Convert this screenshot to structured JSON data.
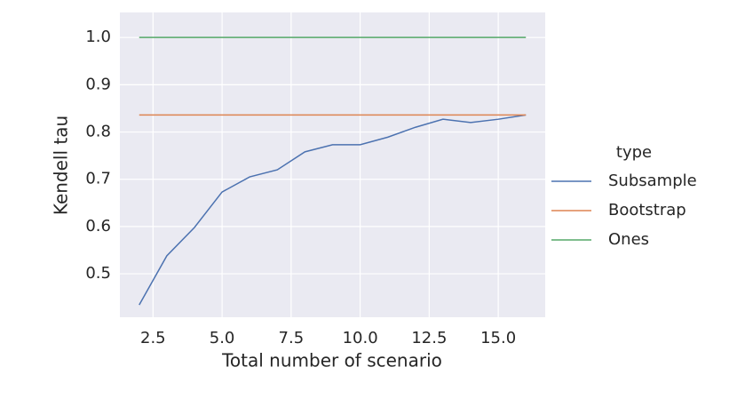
{
  "chart_data": {
    "type": "line",
    "x_label": "Total number of scenario",
    "y_label": "Kendell tau",
    "legend_title": "type",
    "x": [
      2,
      3,
      4,
      5,
      6,
      7,
      8,
      9,
      10,
      11,
      12,
      13,
      14,
      15,
      16
    ],
    "series": [
      {
        "name": "Subsample",
        "color": "#4c72b0",
        "values": [
          0.434,
          0.538,
          0.598,
          0.673,
          0.705,
          0.72,
          0.758,
          0.773,
          0.773,
          0.789,
          0.81,
          0.827,
          0.82,
          0.827,
          0.836
        ]
      },
      {
        "name": "Bootstrap",
        "color": "#dd8452",
        "values": [
          0.836,
          0.836,
          0.836,
          0.836,
          0.836,
          0.836,
          0.836,
          0.836,
          0.836,
          0.836,
          0.836,
          0.836,
          0.836,
          0.836,
          0.836
        ]
      },
      {
        "name": "Ones",
        "color": "#55a868",
        "values": [
          1.0,
          1.0,
          1.0,
          1.0,
          1.0,
          1.0,
          1.0,
          1.0,
          1.0,
          1.0,
          1.0,
          1.0,
          1.0,
          1.0,
          1.0
        ]
      }
    ],
    "xlim": [
      1.3,
      16.7
    ],
    "ylim": [
      0.408,
      1.053
    ],
    "xticks": [
      2.5,
      {
        "value": 5,
        "label": "5.0"
      },
      7.5,
      {
        "value": 10,
        "label": "10.0"
      },
      12.5,
      {
        "value": 15,
        "label": "15.0"
      }
    ],
    "yticks": [
      0.5,
      0.6,
      0.7,
      0.8,
      0.9,
      {
        "value": 1,
        "label": "1.0"
      }
    ],
    "grid": true,
    "legend": "right"
  }
}
